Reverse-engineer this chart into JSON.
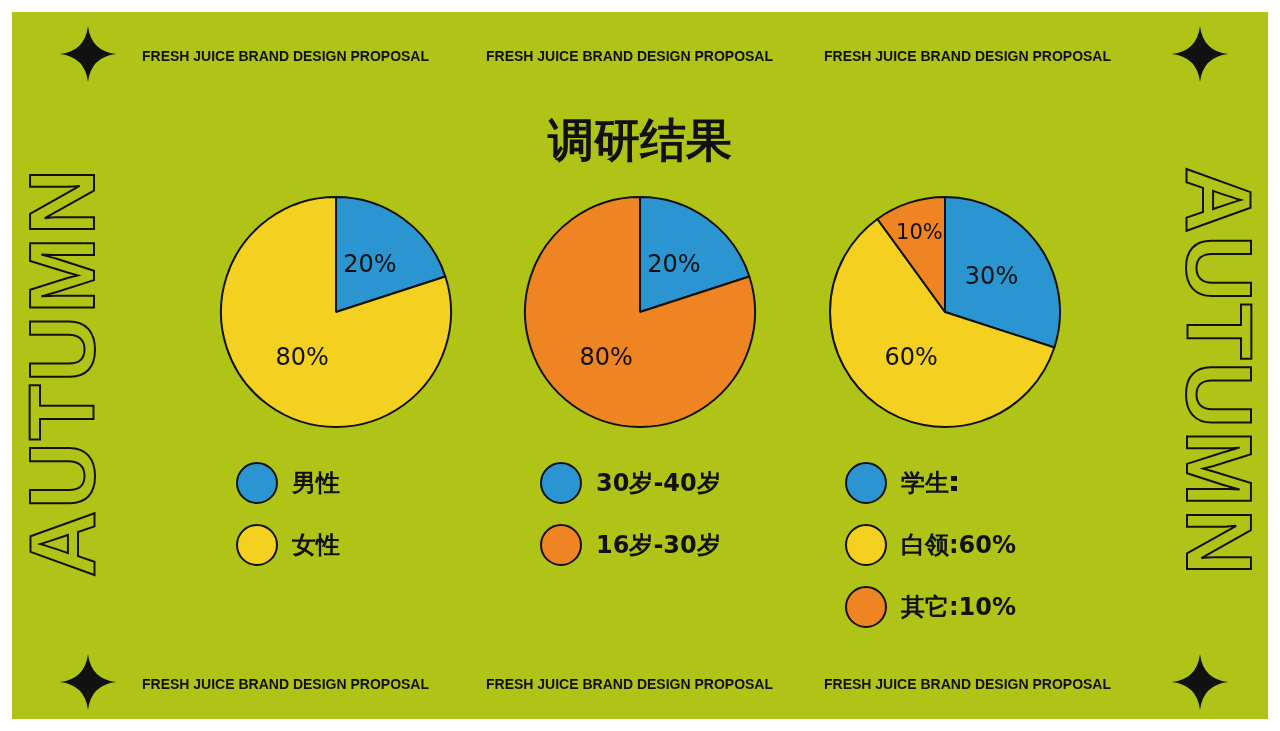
{
  "chart_data": [
    {
      "type": "pie",
      "categories": [
        "男性",
        "女性"
      ],
      "values": [
        20,
        80
      ],
      "colors": [
        "#2b95d1",
        "#f4d120"
      ],
      "value_labels": [
        "20%",
        "80%"
      ],
      "legend": "bottom",
      "annotations": [
        "FRESH JUICE BRAND DESIGN PROPOSAL",
        "FRESH JUICE BRAND DESIGN PROPOSAL",
        "FRESH JUICE BRAND DESIGN PROPOSAL",
        "FRESH JUICE BRAND DESIGN PROPOSAL",
        "FRESH JUICE BRAND DESIGN PROPOSAL",
        "FRESH JUICE BRAND DESIGN PROPOSAL",
        "AUTUMN",
        "AUTUMN"
      ]
    },
    {
      "type": "pie",
      "title": "调研结果",
      "categories": [
        "30岁-40岁",
        "16岁-30岁"
      ],
      "values": [
        20,
        80
      ],
      "colors": [
        "#2b95d1",
        "#ef8423"
      ],
      "value_labels": [
        "20%",
        "80%"
      ],
      "legend": "bottom"
    },
    {
      "type": "pie",
      "categories": [
        "学生",
        "白领:60%",
        "其它:10%"
      ],
      "values": [
        30,
        60,
        10
      ],
      "colors": [
        "#2b95d1",
        "#f4d120",
        "#ef8423"
      ],
      "value_labels": [
        "30%",
        "60%",
        "10%"
      ],
      "legend": "bottom"
    }
  ]
}
